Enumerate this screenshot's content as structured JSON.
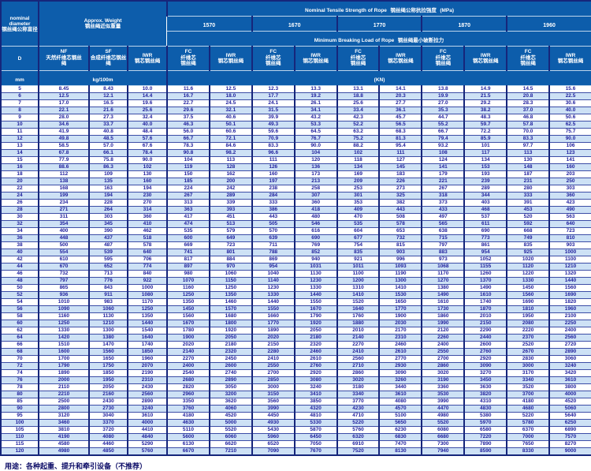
{
  "header": {
    "nominal": {
      "en": "nominal diameter",
      "zh": "钢丝绳公称直径"
    },
    "weight": {
      "en": "Approx. Weight",
      "zh": "钢丝绳近似重量"
    },
    "tensile": {
      "en": "Nominal Tensile Strength of Rope",
      "zh": "钢丝绳公称抗拉强度",
      "unit": "(MPa)"
    },
    "breaking": {
      "en": "Minimum Breaking Load of Rope",
      "zh": "钢丝绳最小破断拉力"
    },
    "strengths": [
      "1570",
      "1670",
      "1770",
      "1870",
      "1960"
    ],
    "col_d": "D",
    "nf": {
      "en": "NF",
      "zh": "天然纤维芯钢丝绳"
    },
    "sf": {
      "en": "SF",
      "zh": "合成纤维芯钢丝绳"
    },
    "iwr_weight": {
      "en": "IWR",
      "zh": "钢芯钢丝绳"
    },
    "fc": {
      "en": "FC",
      "zh": "纤维芯钢丝绳"
    },
    "iwr": {
      "en": "IWR",
      "zh": "钢芯钢丝绳"
    },
    "unit_mm": "mm",
    "unit_kg": "kg/100m",
    "unit_kn": "(KN)"
  },
  "columns": [
    "D",
    "NF",
    "SF",
    "IWR",
    "FC-1570",
    "IWR-1570",
    "FC-1670",
    "IWR-1670",
    "FC-1770",
    "IWR-1770",
    "FC-1870",
    "IWR-1870",
    "FC-1960",
    "IWR-1960"
  ],
  "rows": [
    [
      "5",
      "8.45",
      "8.43",
      "10.0",
      "11.6",
      "12.5",
      "12.3",
      "13.3",
      "13.1",
      "14.1",
      "13.8",
      "14.9",
      "14.5",
      "15.6"
    ],
    [
      "6",
      "12.5",
      "12.1",
      "14.4",
      "16.7",
      "18.0",
      "17.7",
      "19.2",
      "18.8",
      "20.3",
      "19.9",
      "21.5",
      "20.8",
      "22.5"
    ],
    [
      "7",
      "17.0",
      "16.5",
      "19.6",
      "22.7",
      "24.5",
      "24.1",
      "26.1",
      "25.6",
      "27.7",
      "27.0",
      "29.2",
      "28.3",
      "30.6"
    ],
    [
      "8",
      "22.1",
      "21.6",
      "25.6",
      "29.6",
      "32.1",
      "31.5",
      "34.1",
      "33.4",
      "36.1",
      "35.3",
      "38.2",
      "37.0",
      "40.0"
    ],
    [
      "9",
      "28.0",
      "27.3",
      "32.4",
      "37.5",
      "40.6",
      "39.9",
      "43.2",
      "42.3",
      "45.7",
      "44.7",
      "48.3",
      "46.8",
      "50.6"
    ],
    [
      "10",
      "34.6",
      "33.7",
      "40.0",
      "46.3",
      "50.1",
      "49.3",
      "53.3",
      "52.2",
      "56.5",
      "55.2",
      "59.7",
      "57.8",
      "62.5"
    ],
    [
      "11",
      "41.9",
      "40.8",
      "48.4",
      "56.0",
      "60.6",
      "59.6",
      "64.5",
      "63.2",
      "68.3",
      "66.7",
      "72.2",
      "70.0",
      "75.7"
    ],
    [
      "12",
      "49.8",
      "48.5",
      "57.6",
      "66.7",
      "72.1",
      "70.9",
      "76.7",
      "75.2",
      "81.3",
      "79.4",
      "85.9",
      "83.3",
      "90.0"
    ],
    [
      "13",
      "58.5",
      "57.0",
      "67.6",
      "78.3",
      "84.6",
      "83.3",
      "90.0",
      "88.2",
      "95.4",
      "93.2",
      "101",
      "97.7",
      "106"
    ],
    [
      "14",
      "67.8",
      "66.1",
      "78.4",
      "90.8",
      "98.2",
      "96.6",
      "104",
      "102",
      "111",
      "108",
      "117",
      "113",
      "123"
    ],
    [
      "15",
      "77.9",
      "75.8",
      "90.0",
      "104",
      "113",
      "111",
      "120",
      "118",
      "127",
      "124",
      "134",
      "130",
      "141"
    ],
    [
      "16",
      "88.6",
      "86.3",
      "102",
      "119",
      "128",
      "126",
      "136",
      "134",
      "145",
      "141",
      "153",
      "148",
      "160"
    ],
    [
      "18",
      "112",
      "109",
      "130",
      "150",
      "162",
      "160",
      "173",
      "169",
      "183",
      "179",
      "193",
      "187",
      "203"
    ],
    [
      "20",
      "138",
      "135",
      "160",
      "185",
      "200",
      "197",
      "213",
      "209",
      "226",
      "221",
      "239",
      "231",
      "250"
    ],
    [
      "22",
      "168",
      "163",
      "194",
      "224",
      "242",
      "238",
      "258",
      "253",
      "273",
      "267",
      "289",
      "280",
      "303"
    ],
    [
      "24",
      "199",
      "194",
      "230",
      "267",
      "289",
      "284",
      "307",
      "301",
      "325",
      "318",
      "344",
      "333",
      "360"
    ],
    [
      "26",
      "234",
      "228",
      "270",
      "313",
      "339",
      "333",
      "360",
      "353",
      "382",
      "373",
      "403",
      "391",
      "423"
    ],
    [
      "28",
      "271",
      "264",
      "314",
      "363",
      "393",
      "386",
      "418",
      "409",
      "443",
      "433",
      "468",
      "453",
      "490"
    ],
    [
      "30",
      "311",
      "303",
      "360",
      "417",
      "451",
      "443",
      "480",
      "470",
      "508",
      "497",
      "537",
      "520",
      "563"
    ],
    [
      "32",
      "354",
      "345",
      "410",
      "474",
      "513",
      "505",
      "546",
      "535",
      "578",
      "565",
      "611",
      "592",
      "640"
    ],
    [
      "34",
      "400",
      "390",
      "462",
      "535",
      "579",
      "570",
      "616",
      "604",
      "653",
      "638",
      "690",
      "668",
      "723"
    ],
    [
      "36",
      "448",
      "437",
      "518",
      "600",
      "649",
      "639",
      "690",
      "677",
      "732",
      "715",
      "773",
      "749",
      "810"
    ],
    [
      "38",
      "500",
      "487",
      "578",
      "669",
      "723",
      "711",
      "769",
      "754",
      "815",
      "797",
      "861",
      "835",
      "903"
    ],
    [
      "40",
      "554",
      "539",
      "640",
      "741",
      "801",
      "788",
      "852",
      "835",
      "903",
      "883",
      "954",
      "925",
      "1000"
    ],
    [
      "42",
      "610",
      "595",
      "706",
      "817",
      "884",
      "869",
      "940",
      "921",
      "996",
      "973",
      "1052",
      "1020",
      "1100"
    ],
    [
      "44",
      "670",
      "652",
      "774",
      "897",
      "970",
      "954",
      "1031",
      "1011",
      "1093",
      "1068",
      "1155",
      "1120",
      "1210"
    ],
    [
      "46",
      "732",
      "713",
      "840",
      "980",
      "1060",
      "1040",
      "1130",
      "1100",
      "1190",
      "1170",
      "1260",
      "1220",
      "1320"
    ],
    [
      "48",
      "797",
      "776",
      "922",
      "1070",
      "1150",
      "1140",
      "1230",
      "1200",
      "1300",
      "1270",
      "1370",
      "1330",
      "1440"
    ],
    [
      "50",
      "865",
      "843",
      "1000",
      "1160",
      "1250",
      "1230",
      "1330",
      "1310",
      "1410",
      "1380",
      "1490",
      "1450",
      "1560"
    ],
    [
      "52",
      "936",
      "911",
      "1080",
      "1250",
      "1350",
      "1330",
      "1440",
      "1410",
      "1530",
      "1490",
      "1610",
      "1560",
      "1690"
    ],
    [
      "54",
      "1010",
      "983",
      "1170",
      "1350",
      "1460",
      "1440",
      "1550",
      "1520",
      "1650",
      "1610",
      "1740",
      "1690",
      "1820"
    ],
    [
      "56",
      "1090",
      "1060",
      "1250",
      "1450",
      "1570",
      "1550",
      "1670",
      "1640",
      "1770",
      "1730",
      "1870",
      "1810",
      "1960"
    ],
    [
      "58",
      "1160",
      "1130",
      "1350",
      "1560",
      "1680",
      "1660",
      "1790",
      "1760",
      "1900",
      "1860",
      "2010",
      "1950",
      "2100"
    ],
    [
      "60",
      "1250",
      "1210",
      "1440",
      "1670",
      "1800",
      "1770",
      "1920",
      "1880",
      "2030",
      "1990",
      "2150",
      "2080",
      "2250"
    ],
    [
      "62",
      "1330",
      "1300",
      "1540",
      "1780",
      "1920",
      "1890",
      "2050",
      "2010",
      "2170",
      "2120",
      "2290",
      "2220",
      "2400"
    ],
    [
      "64",
      "1420",
      "1380",
      "1640",
      "1900",
      "2050",
      "2020",
      "2180",
      "2140",
      "2310",
      "2260",
      "2440",
      "2370",
      "2560"
    ],
    [
      "66",
      "1510",
      "1470",
      "1740",
      "2020",
      "2180",
      "2150",
      "2320",
      "2270",
      "2460",
      "2400",
      "2600",
      "2520",
      "2720"
    ],
    [
      "68",
      "1600",
      "1560",
      "1850",
      "2140",
      "2320",
      "2280",
      "2460",
      "2410",
      "2610",
      "2550",
      "2760",
      "2670",
      "2890"
    ],
    [
      "70",
      "1700",
      "1650",
      "1960",
      "2270",
      "2450",
      "2410",
      "2610",
      "2560",
      "2770",
      "2700",
      "2920",
      "2830",
      "3060"
    ],
    [
      "72",
      "1790",
      "1750",
      "2070",
      "2400",
      "2600",
      "2550",
      "2760",
      "2710",
      "2930",
      "2860",
      "3090",
      "3000",
      "3240"
    ],
    [
      "74",
      "1890",
      "1850",
      "2190",
      "2540",
      "2740",
      "2700",
      "2920",
      "2860",
      "3090",
      "3020",
      "3270",
      "3170",
      "3420"
    ],
    [
      "76",
      "2000",
      "1950",
      "2310",
      "2680",
      "2890",
      "2850",
      "3080",
      "3020",
      "3260",
      "3190",
      "3450",
      "3340",
      "3610"
    ],
    [
      "78",
      "2110",
      "2050",
      "2430",
      "2820",
      "3050",
      "3000",
      "3240",
      "3180",
      "3440",
      "3360",
      "3630",
      "3520",
      "3800"
    ],
    [
      "80",
      "2210",
      "2160",
      "2560",
      "2960",
      "3200",
      "3150",
      "3410",
      "3340",
      "3610",
      "3530",
      "3820",
      "3700",
      "4000"
    ],
    [
      "85",
      "2500",
      "2430",
      "2890",
      "3350",
      "3620",
      "3560",
      "3850",
      "3770",
      "4080",
      "3990",
      "4310",
      "4180",
      "4520"
    ],
    [
      "90",
      "2800",
      "2730",
      "3240",
      "3760",
      "4060",
      "3990",
      "4320",
      "4230",
      "4570",
      "4470",
      "4830",
      "4680",
      "5060"
    ],
    [
      "95",
      "3120",
      "3040",
      "3610",
      "4180",
      "4520",
      "4450",
      "4810",
      "4710",
      "5100",
      "4980",
      "5380",
      "5220",
      "5640"
    ],
    [
      "100",
      "3460",
      "3370",
      "4000",
      "4630",
      "5000",
      "4930",
      "5330",
      "5220",
      "5650",
      "5520",
      "5970",
      "5780",
      "6250"
    ],
    [
      "105",
      "3810",
      "3720",
      "4410",
      "5110",
      "5520",
      "5430",
      "5870",
      "5760",
      "6230",
      "6080",
      "6580",
      "6370",
      "6890"
    ],
    [
      "110",
      "4190",
      "4080",
      "4840",
      "5600",
      "6060",
      "5960",
      "6450",
      "6320",
      "6830",
      "6680",
      "7220",
      "7000",
      "7570"
    ],
    [
      "115",
      "4580",
      "4460",
      "5290",
      "6130",
      "6620",
      "6520",
      "7050",
      "6910",
      "7470",
      "7300",
      "7890",
      "7650",
      "8270"
    ],
    [
      "120",
      "4980",
      "4850",
      "5760",
      "6670",
      "7210",
      "7090",
      "7670",
      "7520",
      "8130",
      "7940",
      "8590",
      "8330",
      "9000"
    ]
  ],
  "footer_note": "用途：各种起重、提升和牵引设备（不推荐）",
  "colors": {
    "header_bg": "#0d5dab",
    "row_alt": "#cde1f5",
    "grid": "#16267b",
    "row_line": "#3c4da6",
    "data_text": "#1d1d9c"
  }
}
